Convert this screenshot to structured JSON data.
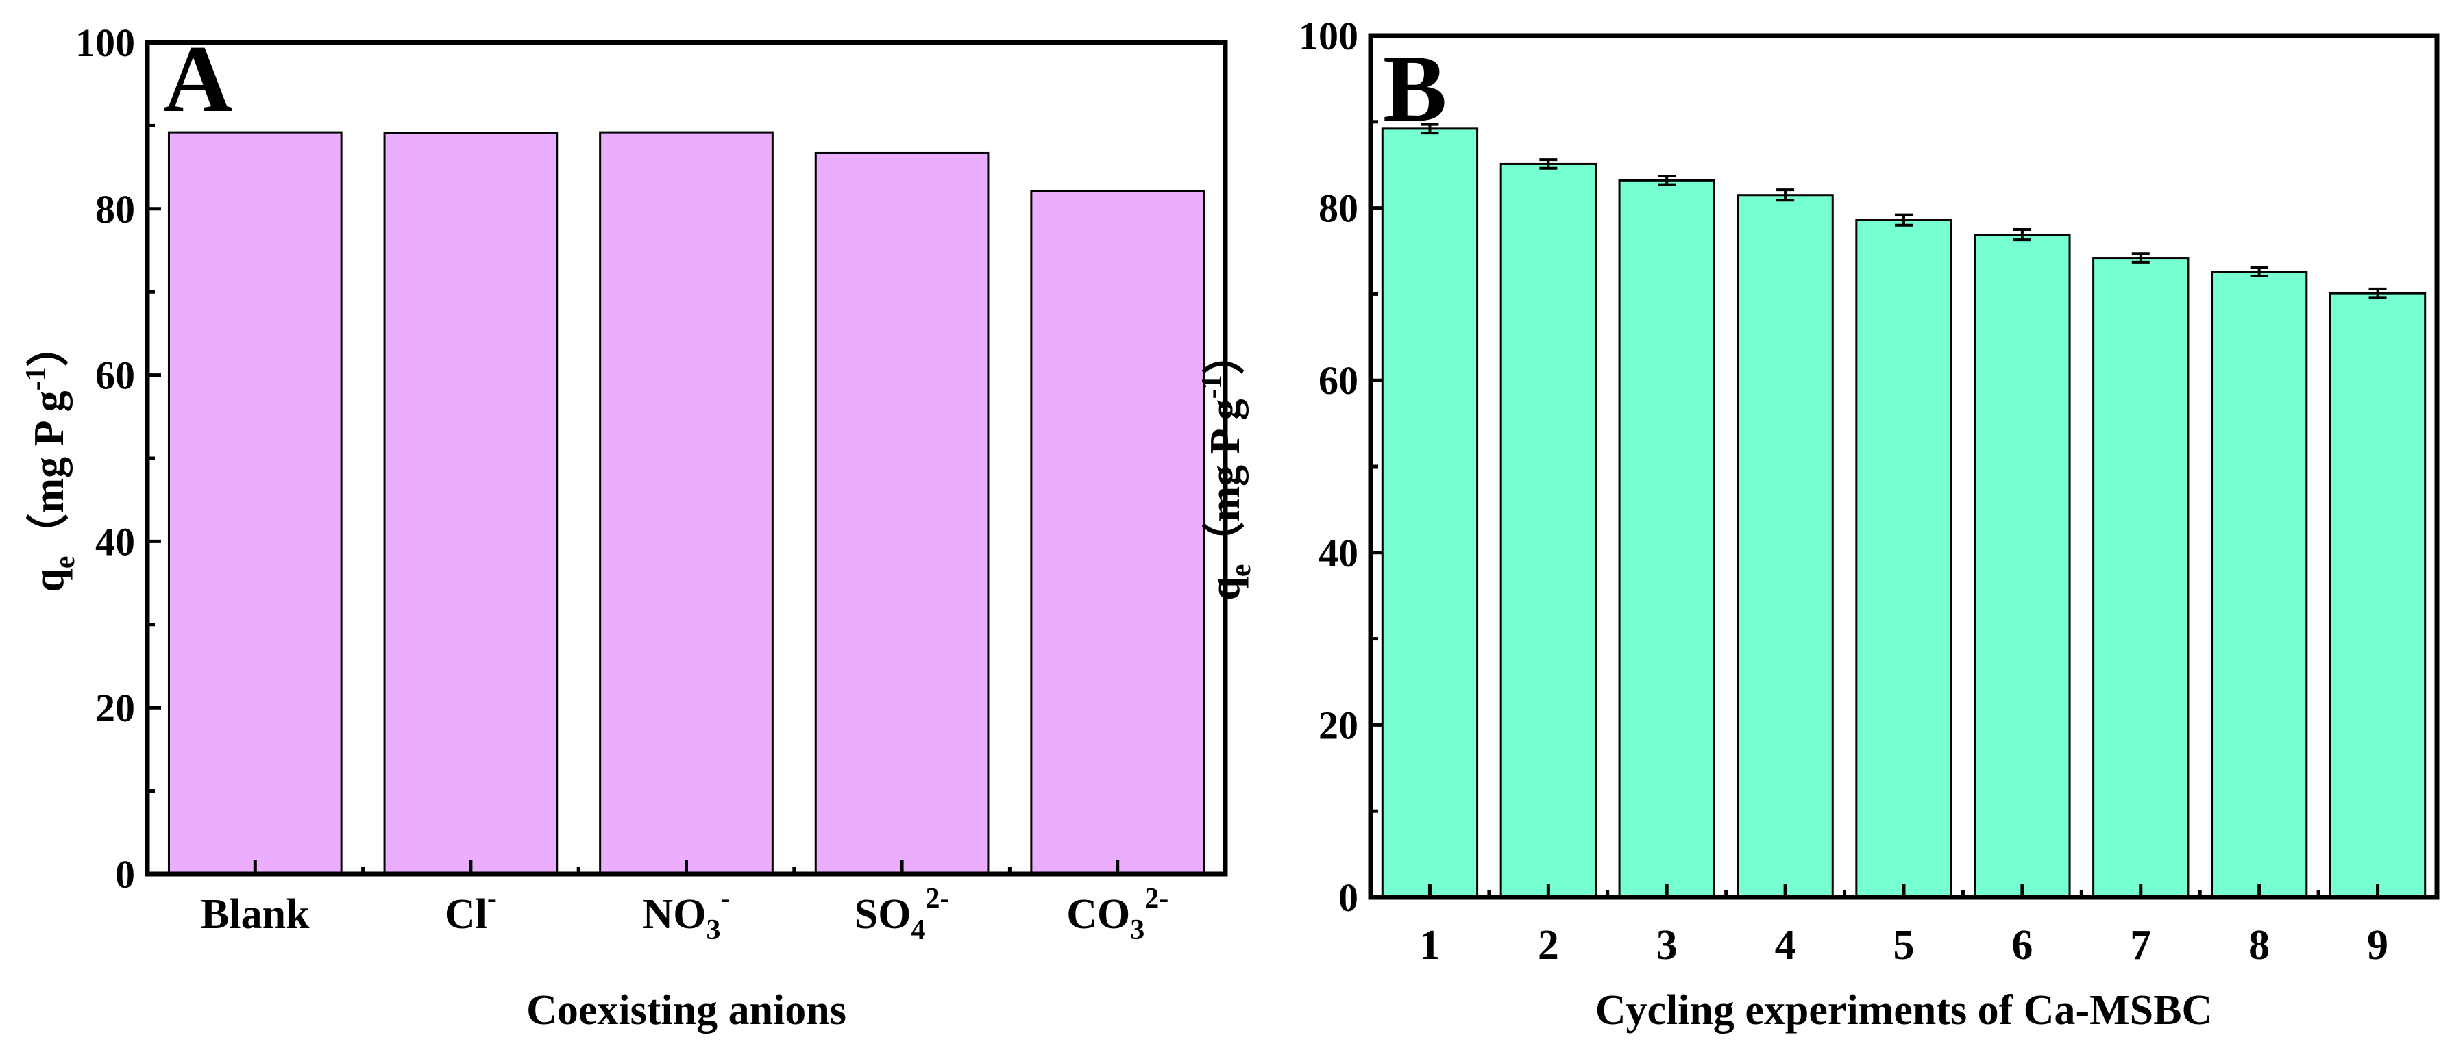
{
  "chart_data": [
    {
      "panel": "A",
      "type": "bar",
      "xlabel": "Coexisting anions",
      "ylabel": {
        "main": "q",
        "sub": "e",
        "unit": "（mg P g",
        "sup": "-1",
        "close": "）"
      },
      "ylim": [
        0,
        100
      ],
      "yticks": [
        "0",
        "20",
        "40",
        "60",
        "80",
        "100"
      ],
      "categories": [
        {
          "base": "Blank",
          "sub": "",
          "sup": ""
        },
        {
          "base": "Cl",
          "sub": "",
          "sup": "-"
        },
        {
          "base": "NO",
          "sub": "3",
          "sup": "-"
        },
        {
          "base": "SO",
          "sub": "4",
          "sup": "2-"
        },
        {
          "base": "CO",
          "sub": "3",
          "sup": "2-"
        }
      ],
      "values": [
        89.2,
        89.1,
        89.2,
        86.7,
        82.1
      ],
      "errors": [],
      "bar_color": "#EBADFD"
    },
    {
      "panel": "B",
      "type": "bar",
      "xlabel": "Cycling experiments of Ca-MSBC",
      "ylabel": {
        "main": "q",
        "sub": "e",
        "unit": "（mg P g",
        "sup": "-1",
        "close": "）"
      },
      "ylim": [
        0,
        100
      ],
      "yticks": [
        "0",
        "20",
        "40",
        "60",
        "80",
        "100"
      ],
      "categories": [
        {
          "base": "1",
          "sub": "",
          "sup": ""
        },
        {
          "base": "2",
          "sub": "",
          "sup": ""
        },
        {
          "base": "3",
          "sub": "",
          "sup": ""
        },
        {
          "base": "4",
          "sub": "",
          "sup": ""
        },
        {
          "base": "5",
          "sub": "",
          "sup": ""
        },
        {
          "base": "6",
          "sub": "",
          "sup": ""
        },
        {
          "base": "7",
          "sub": "",
          "sup": ""
        },
        {
          "base": "8",
          "sub": "",
          "sup": ""
        },
        {
          "base": "9",
          "sub": "",
          "sup": ""
        }
      ],
      "values": [
        89.2,
        85.1,
        83.2,
        81.5,
        78.6,
        76.9,
        74.2,
        72.6,
        70.1
      ],
      "errors": [
        0.5,
        0.5,
        0.5,
        0.6,
        0.6,
        0.6,
        0.5,
        0.5,
        0.5
      ],
      "bar_color": "#75FFD2"
    }
  ]
}
